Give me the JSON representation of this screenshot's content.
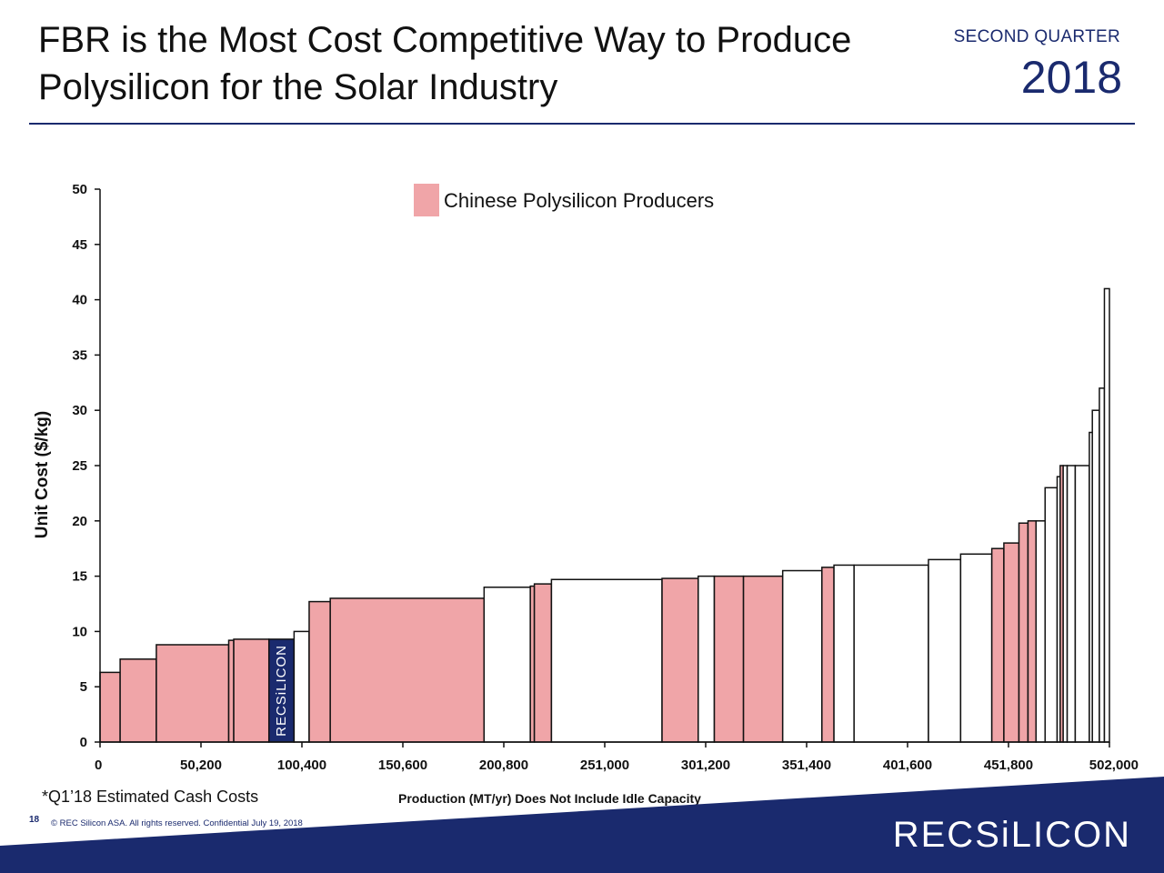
{
  "header": {
    "title_line1": "FBR is the Most Cost Competitive Way to Produce",
    "title_line2": "Polysilicon for the Solar Industry",
    "quarter": "SECOND QUARTER",
    "year": "2018"
  },
  "footer": {
    "footnote": "*Q1’18 Estimated Cash Costs",
    "page_number": "18",
    "copyright": "© REC Silicon ASA. All rights reserved. Confidential  July 19, 2018",
    "logo_text": "RECSiLICON"
  },
  "colors": {
    "chinese": "#f0a5a8",
    "other": "#ffffff",
    "rec": "#1a2a6e",
    "brand_navy": "#1a2a6e"
  },
  "chart_data": {
    "type": "bar",
    "subtype": "cost-supply-curve",
    "title": "",
    "xlabel": "Production (MT/yr) Does Not Include Idle Capacity",
    "ylabel": "Unit Cost ($/kg)",
    "xlim": [
      0,
      502000
    ],
    "ylim": [
      0,
      50
    ],
    "x_ticks": [
      "0",
      "50,200",
      "100,400",
      "150,600",
      "200,800",
      "251,000",
      "301,200",
      "351,400",
      "401,600",
      "451,800",
      "502,000"
    ],
    "y_ticks": [
      "0",
      "5",
      "10",
      "15",
      "20",
      "25",
      "30",
      "35",
      "40",
      "45",
      "50"
    ],
    "legend": {
      "label": "Chinese Polysilicon Producers",
      "position": "top-center"
    },
    "rec_label": "RECSiLICON",
    "segments": [
      {
        "x0": 0,
        "x1": 10000,
        "cost": 6.3,
        "group": "chinese"
      },
      {
        "x0": 10000,
        "x1": 28000,
        "cost": 7.5,
        "group": "chinese"
      },
      {
        "x0": 28000,
        "x1": 64000,
        "cost": 8.8,
        "group": "chinese"
      },
      {
        "x0": 64000,
        "x1": 66500,
        "cost": 9.2,
        "group": "chinese"
      },
      {
        "x0": 66500,
        "x1": 84000,
        "cost": 9.3,
        "group": "chinese"
      },
      {
        "x0": 84000,
        "x1": 96500,
        "cost": 9.3,
        "group": "rec"
      },
      {
        "x0": 96500,
        "x1": 104000,
        "cost": 10.0,
        "group": "other"
      },
      {
        "x0": 104000,
        "x1": 114500,
        "cost": 12.7,
        "group": "chinese"
      },
      {
        "x0": 114500,
        "x1": 191000,
        "cost": 13.0,
        "group": "chinese"
      },
      {
        "x0": 191000,
        "x1": 214000,
        "cost": 14.0,
        "group": "other"
      },
      {
        "x0": 214000,
        "x1": 216000,
        "cost": 14.1,
        "group": "chinese"
      },
      {
        "x0": 216000,
        "x1": 224500,
        "cost": 14.3,
        "group": "chinese"
      },
      {
        "x0": 224500,
        "x1": 279500,
        "cost": 14.7,
        "group": "other"
      },
      {
        "x0": 279500,
        "x1": 297500,
        "cost": 14.8,
        "group": "chinese"
      },
      {
        "x0": 297500,
        "x1": 305500,
        "cost": 15.0,
        "group": "other"
      },
      {
        "x0": 305500,
        "x1": 320000,
        "cost": 15.0,
        "group": "chinese"
      },
      {
        "x0": 320000,
        "x1": 339500,
        "cost": 15.0,
        "group": "chinese"
      },
      {
        "x0": 339500,
        "x1": 359000,
        "cost": 15.5,
        "group": "other"
      },
      {
        "x0": 359000,
        "x1": 365000,
        "cost": 15.8,
        "group": "chinese"
      },
      {
        "x0": 365000,
        "x1": 375000,
        "cost": 16.0,
        "group": "other"
      },
      {
        "x0": 375000,
        "x1": 412000,
        "cost": 16.0,
        "group": "other"
      },
      {
        "x0": 412000,
        "x1": 428000,
        "cost": 16.5,
        "group": "other"
      },
      {
        "x0": 428000,
        "x1": 443500,
        "cost": 17.0,
        "group": "other"
      },
      {
        "x0": 443500,
        "x1": 449500,
        "cost": 17.5,
        "group": "chinese"
      },
      {
        "x0": 449500,
        "x1": 457000,
        "cost": 18.0,
        "group": "chinese"
      },
      {
        "x0": 457000,
        "x1": 461500,
        "cost": 19.8,
        "group": "chinese"
      },
      {
        "x0": 461500,
        "x1": 465500,
        "cost": 20.0,
        "group": "chinese"
      },
      {
        "x0": 465500,
        "x1": 470000,
        "cost": 20.0,
        "group": "other"
      },
      {
        "x0": 470000,
        "x1": 476000,
        "cost": 23.0,
        "group": "other"
      },
      {
        "x0": 476000,
        "x1": 477500,
        "cost": 24.0,
        "group": "other"
      },
      {
        "x0": 477500,
        "x1": 479000,
        "cost": 25.0,
        "group": "chinese"
      },
      {
        "x0": 479000,
        "x1": 481000,
        "cost": 25.0,
        "group": "other"
      },
      {
        "x0": 481000,
        "x1": 485000,
        "cost": 25.0,
        "group": "other"
      },
      {
        "x0": 485000,
        "x1": 492000,
        "cost": 25.0,
        "group": "other"
      },
      {
        "x0": 492000,
        "x1": 493500,
        "cost": 28.0,
        "group": "other"
      },
      {
        "x0": 493500,
        "x1": 497000,
        "cost": 30.0,
        "group": "other"
      },
      {
        "x0": 497000,
        "x1": 499500,
        "cost": 32.0,
        "group": "other"
      },
      {
        "x0": 499500,
        "x1": 502000,
        "cost": 41.0,
        "group": "other"
      }
    ]
  }
}
